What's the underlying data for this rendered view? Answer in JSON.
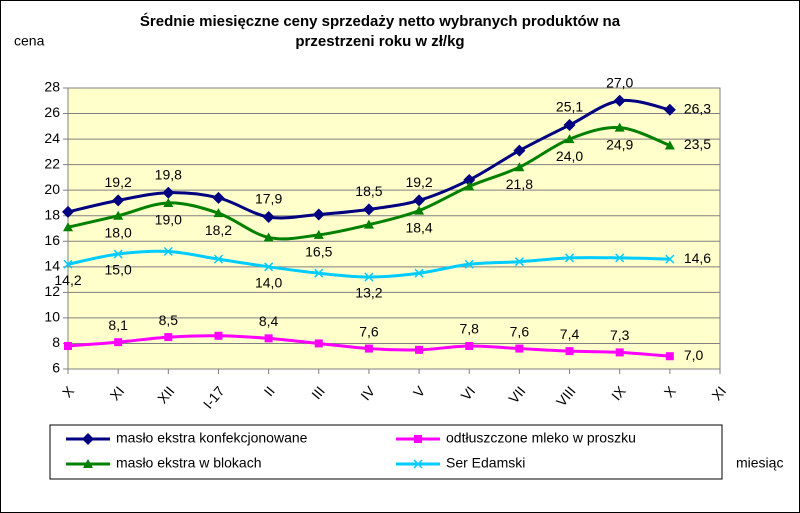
{
  "chart_data": {
    "type": "line",
    "title": [
      "Średnie miesięczne ceny sprzedaży netto  wybranych produktów na",
      "przestrzeni roku w zł/kg"
    ],
    "y_label": "cena",
    "x_label": "miesiąc",
    "categories": [
      "X",
      "XI",
      "XII",
      "I-17",
      "II",
      "III",
      "IV",
      "V",
      "VI",
      "VII",
      "VIII",
      "IX",
      "X",
      "XI"
    ],
    "ylim": [
      6,
      28
    ],
    "yticks": [
      6,
      8,
      10,
      12,
      14,
      16,
      18,
      20,
      22,
      24,
      26,
      28
    ],
    "grid": true,
    "series": [
      {
        "name": "masło ekstra konfekcjonowane",
        "color": "#000080",
        "marker": "diamond",
        "values": [
          18.3,
          19.2,
          19.8,
          19.4,
          17.9,
          18.1,
          18.5,
          19.2,
          20.8,
          23.1,
          25.1,
          27.0,
          26.3,
          null
        ],
        "value_labels": [
          null,
          "19,2",
          "19,8",
          null,
          "17,9",
          null,
          "18,5",
          "19,2",
          null,
          null,
          "25,1",
          "27,0",
          "26,3",
          null
        ]
      },
      {
        "name": "odtłuszczone mleko w proszku",
        "color": "#ff00ff",
        "marker": "square",
        "values": [
          7.8,
          8.1,
          8.5,
          8.6,
          8.4,
          8.0,
          7.6,
          7.5,
          7.8,
          7.6,
          7.4,
          7.3,
          7.0,
          null
        ],
        "value_labels": [
          null,
          "8,1",
          "8,5",
          null,
          "8,4",
          null,
          "7,6",
          null,
          "7,8",
          "7,6",
          "7,4",
          "7,3",
          "7,0",
          null
        ]
      },
      {
        "name": "masło ekstra w blokach",
        "color": "#008000",
        "marker": "triangle",
        "values": [
          17.1,
          18.0,
          19.0,
          18.2,
          16.3,
          16.5,
          17.3,
          18.4,
          20.3,
          21.8,
          24.0,
          24.9,
          23.5,
          null
        ],
        "value_labels": [
          null,
          "18,0",
          "19,0",
          "18,2",
          null,
          "16,5",
          null,
          "18,4",
          null,
          "21,8",
          "24,0",
          "24,9",
          "23,5",
          null
        ]
      },
      {
        "name": "Ser Edamski",
        "color": "#00ccff",
        "marker": "x",
        "values": [
          14.2,
          15.0,
          15.2,
          14.6,
          14.0,
          13.5,
          13.2,
          13.5,
          14.2,
          14.4,
          14.7,
          14.7,
          14.6,
          null
        ],
        "value_labels": [
          "14,2",
          "15,0",
          null,
          null,
          "14,0",
          null,
          "13,2",
          null,
          null,
          null,
          null,
          null,
          "14,6",
          null
        ]
      }
    ]
  }
}
